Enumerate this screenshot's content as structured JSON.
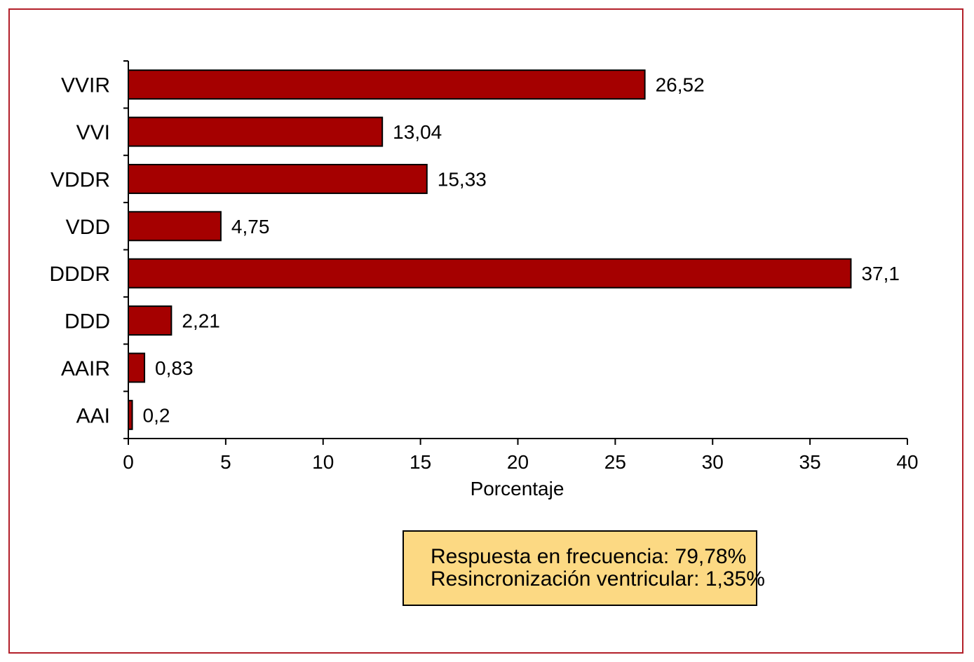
{
  "colors": {
    "bar_fill": "#a50000",
    "bar_stroke": "#000000",
    "frame_border": "#b3202a",
    "note_background": "#fcd983"
  },
  "chart_data": {
    "type": "bar",
    "orientation": "horizontal",
    "categories": [
      "VVIR",
      "VVI",
      "VDDR",
      "VDD",
      "DDDR",
      "DDD",
      "AAIR",
      "AAI"
    ],
    "values": [
      26.52,
      13.04,
      15.33,
      4.75,
      37.1,
      2.21,
      0.83,
      0.2
    ],
    "value_labels": [
      "26,52",
      "13,04",
      "15,33",
      "4,75",
      "37,1",
      "2,21",
      "0,83",
      "0,2"
    ],
    "xlabel": "Porcentaje",
    "ylabel": "",
    "title": "",
    "xlim": [
      0,
      40
    ],
    "x_ticks": [
      0,
      5,
      10,
      15,
      20,
      25,
      30,
      35,
      40
    ],
    "grid": false,
    "legend": "none"
  },
  "note": {
    "line1": "Respuesta en frecuencia: 79,78%",
    "line2": "Resincronización ventricular: 1,35%"
  }
}
